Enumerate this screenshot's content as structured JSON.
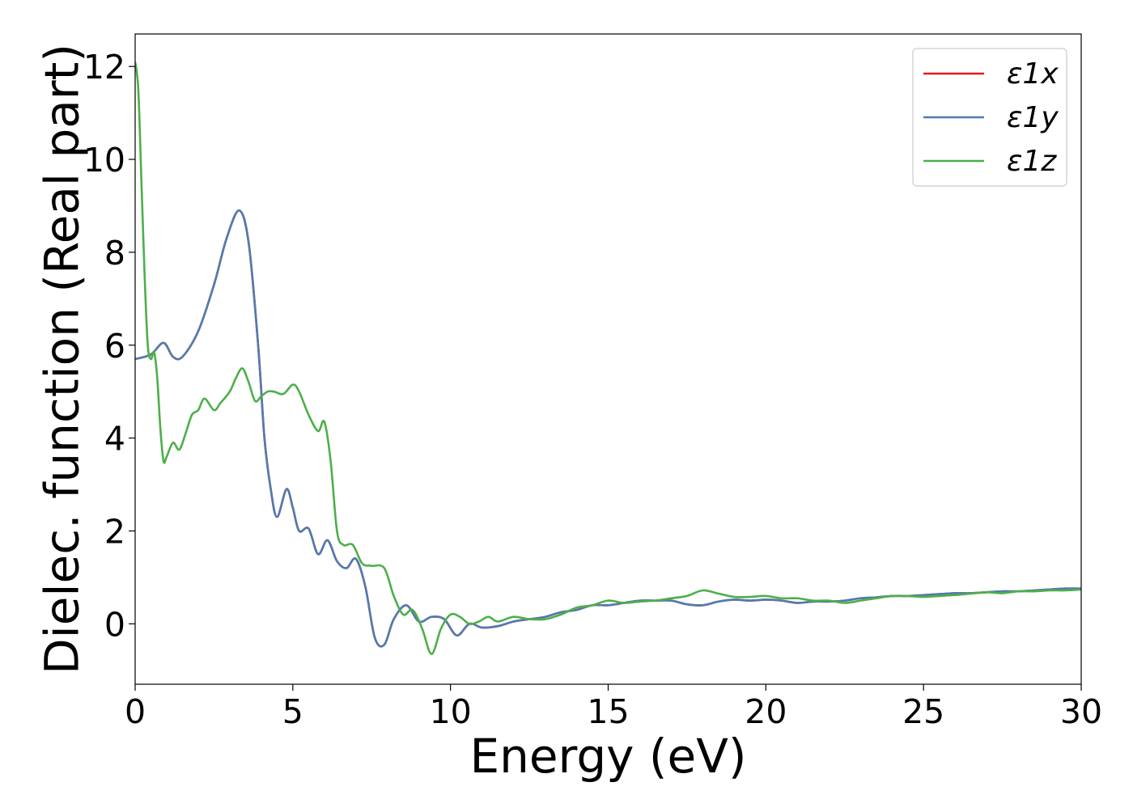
{
  "chart_data": {
    "type": "line",
    "title": "",
    "xlabel": "Energy (eV)",
    "ylabel": "Dielec. function (Real part)",
    "xlim": [
      0,
      30
    ],
    "ylim": [
      -1.3,
      12.7
    ],
    "xticks": [
      0,
      5,
      10,
      15,
      20,
      25,
      30
    ],
    "yticks": [
      0,
      2,
      4,
      6,
      8,
      10,
      12
    ],
    "xtick_labels": [
      "0",
      "5",
      "10",
      "15",
      "20",
      "25",
      "30"
    ],
    "ytick_labels": [
      "0",
      "2",
      "4",
      "6",
      "8",
      "10",
      "12"
    ],
    "grid": false,
    "legend_position": "top-right",
    "series": [
      {
        "name": "ε1x",
        "color": "#e41a1c",
        "x": [
          0,
          0.5,
          0.9,
          1.2,
          1.5,
          2.0,
          2.5,
          2.9,
          3.3,
          3.6,
          3.9,
          4.1,
          4.3,
          4.5,
          4.8,
          5.0,
          5.2,
          5.5,
          5.8,
          6.1,
          6.4,
          6.7,
          7.0,
          7.3,
          7.6,
          7.9,
          8.2,
          8.6,
          9.0,
          9.4,
          9.8,
          10.2,
          10.6,
          11.0,
          11.5,
          12.0,
          12.5,
          13.0,
          13.5,
          14.0,
          14.5,
          15.0,
          15.5,
          16.0,
          16.5,
          17.0,
          17.5,
          18.0,
          18.5,
          19.0,
          19.5,
          20.0,
          20.5,
          21.0,
          21.5,
          22.0,
          22.5,
          23.0,
          23.5,
          24.0,
          24.5,
          25.0,
          25.5,
          26.0,
          26.5,
          27.0,
          27.5,
          28.0,
          28.5,
          29.0,
          29.5,
          30.0
        ],
        "y": [
          5.7,
          5.8,
          6.05,
          5.75,
          5.75,
          6.3,
          7.3,
          8.3,
          8.9,
          8.2,
          6.0,
          4.0,
          2.9,
          2.3,
          2.9,
          2.5,
          2.0,
          2.05,
          1.5,
          1.8,
          1.35,
          1.2,
          1.4,
          0.8,
          -0.3,
          -0.45,
          0.1,
          0.4,
          0.05,
          0.15,
          0.1,
          -0.25,
          0.0,
          -0.08,
          -0.05,
          0.05,
          0.1,
          0.15,
          0.25,
          0.3,
          0.4,
          0.4,
          0.45,
          0.5,
          0.5,
          0.5,
          0.42,
          0.4,
          0.48,
          0.52,
          0.5,
          0.52,
          0.5,
          0.45,
          0.48,
          0.48,
          0.5,
          0.55,
          0.57,
          0.6,
          0.6,
          0.62,
          0.64,
          0.66,
          0.66,
          0.68,
          0.7,
          0.7,
          0.72,
          0.74,
          0.76,
          0.76
        ]
      },
      {
        "name": "ε1y",
        "color": "#4f7cb0",
        "x": [
          0,
          0.5,
          0.9,
          1.2,
          1.5,
          2.0,
          2.5,
          2.9,
          3.3,
          3.6,
          3.9,
          4.1,
          4.3,
          4.5,
          4.8,
          5.0,
          5.2,
          5.5,
          5.8,
          6.1,
          6.4,
          6.7,
          7.0,
          7.3,
          7.6,
          7.9,
          8.2,
          8.6,
          9.0,
          9.4,
          9.8,
          10.2,
          10.6,
          11.0,
          11.5,
          12.0,
          12.5,
          13.0,
          13.5,
          14.0,
          14.5,
          15.0,
          15.5,
          16.0,
          16.5,
          17.0,
          17.5,
          18.0,
          18.5,
          19.0,
          19.5,
          20.0,
          20.5,
          21.0,
          21.5,
          22.0,
          22.5,
          23.0,
          23.5,
          24.0,
          24.5,
          25.0,
          25.5,
          26.0,
          26.5,
          27.0,
          27.5,
          28.0,
          28.5,
          29.0,
          29.5,
          30.0
        ],
        "y": [
          5.7,
          5.8,
          6.05,
          5.75,
          5.75,
          6.3,
          7.3,
          8.3,
          8.9,
          8.2,
          6.0,
          4.0,
          2.9,
          2.3,
          2.9,
          2.5,
          2.0,
          2.05,
          1.5,
          1.8,
          1.35,
          1.2,
          1.4,
          0.8,
          -0.3,
          -0.45,
          0.1,
          0.4,
          0.05,
          0.15,
          0.1,
          -0.25,
          0.0,
          -0.08,
          -0.05,
          0.05,
          0.1,
          0.15,
          0.25,
          0.3,
          0.4,
          0.4,
          0.45,
          0.5,
          0.5,
          0.5,
          0.42,
          0.4,
          0.48,
          0.52,
          0.5,
          0.52,
          0.5,
          0.45,
          0.48,
          0.48,
          0.5,
          0.55,
          0.57,
          0.6,
          0.6,
          0.62,
          0.64,
          0.66,
          0.66,
          0.68,
          0.7,
          0.7,
          0.72,
          0.74,
          0.76,
          0.76
        ]
      },
      {
        "name": "ε1z",
        "color": "#4daf4a",
        "x": [
          0,
          0.1,
          0.2,
          0.3,
          0.4,
          0.5,
          0.6,
          0.7,
          0.8,
          0.9,
          1.0,
          1.2,
          1.4,
          1.6,
          1.8,
          2.0,
          2.2,
          2.5,
          2.7,
          3.0,
          3.2,
          3.4,
          3.6,
          3.8,
          4.0,
          4.2,
          4.4,
          4.7,
          5.0,
          5.2,
          5.5,
          5.8,
          6.0,
          6.2,
          6.4,
          6.6,
          6.9,
          7.2,
          7.5,
          7.9,
          8.2,
          8.5,
          8.8,
          9.1,
          9.4,
          9.7,
          10.0,
          10.3,
          10.6,
          10.9,
          11.2,
          11.5,
          12.0,
          12.5,
          13.0,
          13.5,
          14.0,
          14.5,
          15.0,
          15.5,
          16.0,
          16.5,
          17.0,
          17.5,
          18.0,
          18.5,
          19.0,
          19.5,
          20.0,
          20.5,
          21.0,
          21.5,
          22.0,
          22.5,
          23.0,
          23.5,
          24.0,
          24.5,
          25.0,
          25.5,
          26.0,
          26.5,
          27.0,
          27.5,
          28.0,
          28.5,
          29.0,
          29.5,
          30.0
        ],
        "y": [
          12.1,
          11.5,
          9.5,
          7.5,
          6.0,
          5.7,
          5.85,
          5.3,
          4.2,
          3.5,
          3.6,
          3.9,
          3.75,
          4.1,
          4.5,
          4.6,
          4.85,
          4.6,
          4.75,
          5.0,
          5.3,
          5.5,
          5.2,
          4.8,
          4.9,
          5.0,
          5.0,
          4.95,
          5.15,
          5.0,
          4.5,
          4.15,
          4.35,
          3.5,
          2.0,
          1.7,
          1.7,
          1.3,
          1.25,
          1.2,
          0.6,
          0.2,
          0.3,
          -0.1,
          -0.65,
          -0.1,
          0.2,
          0.15,
          0.0,
          0.05,
          0.15,
          0.05,
          0.15,
          0.1,
          0.1,
          0.2,
          0.35,
          0.4,
          0.5,
          0.45,
          0.48,
          0.5,
          0.55,
          0.6,
          0.72,
          0.65,
          0.58,
          0.58,
          0.6,
          0.55,
          0.55,
          0.5,
          0.5,
          0.45,
          0.5,
          0.55,
          0.6,
          0.6,
          0.58,
          0.6,
          0.62,
          0.65,
          0.68,
          0.66,
          0.7,
          0.7,
          0.72,
          0.72,
          0.74
        ]
      }
    ]
  }
}
